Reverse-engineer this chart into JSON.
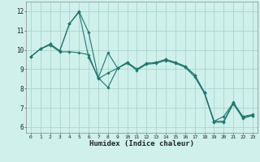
{
  "xlabel": "Humidex (Indice chaleur)",
  "ylabel": "",
  "xlim": [
    -0.5,
    23.5
  ],
  "ylim": [
    5.7,
    12.5
  ],
  "yticks": [
    6,
    7,
    8,
    9,
    10,
    11,
    12
  ],
  "xticks": [
    0,
    1,
    2,
    3,
    4,
    5,
    6,
    7,
    8,
    9,
    10,
    11,
    12,
    13,
    14,
    15,
    16,
    17,
    18,
    19,
    20,
    21,
    22,
    23
  ],
  "bg_color": "#cff0eb",
  "grid_color": "#aad4cc",
  "line_color": "#1e7870",
  "lines": [
    [
      9.65,
      10.05,
      10.3,
      9.95,
      11.35,
      12.0,
      10.9,
      8.55,
      8.05,
      9.05,
      9.35,
      9.0,
      9.3,
      9.35,
      9.5,
      9.35,
      9.15,
      8.7,
      7.8,
      6.3,
      6.3,
      7.3,
      6.5,
      6.6
    ],
    [
      9.65,
      10.05,
      10.3,
      9.95,
      11.35,
      11.95,
      9.6,
      8.55,
      9.85,
      9.05,
      9.35,
      9.0,
      9.3,
      9.35,
      9.5,
      9.35,
      9.15,
      8.7,
      7.8,
      6.3,
      6.55,
      7.25,
      6.55,
      6.65
    ],
    [
      9.65,
      10.05,
      10.25,
      9.9,
      9.9,
      9.85,
      9.75,
      8.5,
      8.8,
      9.05,
      9.3,
      8.95,
      9.25,
      9.3,
      9.45,
      9.3,
      9.1,
      8.6,
      7.75,
      6.25,
      6.25,
      7.2,
      6.45,
      6.6
    ]
  ],
  "figsize": [
    3.2,
    2.0
  ],
  "dpi": 100
}
